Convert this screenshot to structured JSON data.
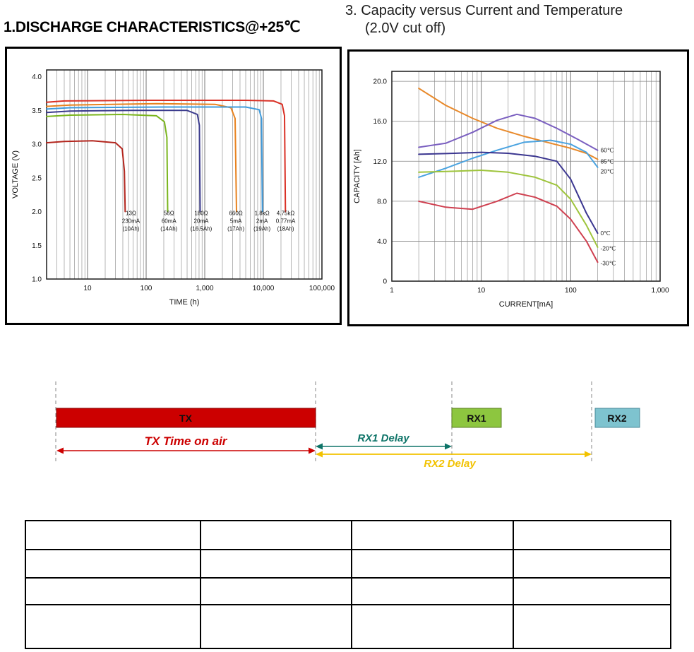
{
  "headings": {
    "left_chart_title": "1.DISCHARGE CHARACTERISTICS@+25℃",
    "right_chart_title_1": "3. Capacity versus Current and Temperature",
    "right_chart_title_2": "(2.0V cut off)"
  },
  "chart_data": [
    {
      "id": "discharge",
      "type": "line",
      "title": "1.DISCHARGE CHARACTERISTICS@+25℃",
      "xlabel": "TIME (h)",
      "ylabel": "VOLTAGE (V)",
      "xscale": "log",
      "xlim": [
        2,
        100000
      ],
      "ylim": [
        1.0,
        4.1
      ],
      "yticks": [
        1.0,
        1.5,
        2.0,
        2.5,
        3.0,
        3.5,
        4.0
      ],
      "ytick_labels": [
        "1.0",
        "1.5",
        "2.0",
        "2.5",
        "3.0",
        "3.5",
        "4.0"
      ],
      "xticks": [
        10,
        100,
        1000,
        10000,
        100000
      ],
      "xtick_labels": [
        "10",
        "100",
        "1,000",
        "10,000",
        "100,000"
      ],
      "hgrid": false,
      "legend": "none",
      "series": [
        {
          "name": "4.75kΩ 0.77mA (18Ah)",
          "color": "#d93025",
          "points": [
            [
              2,
              3.62
            ],
            [
              4,
              3.64
            ],
            [
              100,
              3.65
            ],
            [
              5000,
              3.65
            ],
            [
              15000,
              3.64
            ],
            [
              21000,
              3.59
            ],
            [
              23000,
              3.42
            ],
            [
              23800,
              2.0
            ]
          ]
        },
        {
          "name": "660Ω 5mA (17Ah)",
          "color": "#e8821e",
          "points": [
            [
              2,
              3.56
            ],
            [
              5,
              3.58
            ],
            [
              150,
              3.6
            ],
            [
              1500,
              3.59
            ],
            [
              2800,
              3.54
            ],
            [
              3300,
              3.38
            ],
            [
              3480,
              2.0
            ]
          ]
        },
        {
          "name": "1.8kΩ 2mA (19Ah)",
          "color": "#3f9bdc",
          "points": [
            [
              2,
              3.52
            ],
            [
              5,
              3.54
            ],
            [
              200,
              3.55
            ],
            [
              5000,
              3.55
            ],
            [
              8500,
              3.51
            ],
            [
              9300,
              3.38
            ],
            [
              9650,
              2.0
            ]
          ]
        },
        {
          "name": "180Ω 20mA (16.5Ah)",
          "color": "#3a3a8c",
          "points": [
            [
              2,
              3.47
            ],
            [
              5,
              3.49
            ],
            [
              60,
              3.5
            ],
            [
              500,
              3.5
            ],
            [
              750,
              3.44
            ],
            [
              810,
              3.28
            ],
            [
              835,
              2.0
            ]
          ]
        },
        {
          "name": "56Ω 60mA (14Ah)",
          "color": "#7ab51d",
          "points": [
            [
              2,
              3.41
            ],
            [
              5,
              3.43
            ],
            [
              40,
              3.44
            ],
            [
              150,
              3.42
            ],
            [
              205,
              3.33
            ],
            [
              226,
              3.1
            ],
            [
              233,
              2.0
            ]
          ]
        },
        {
          "name": "13Ω 230mA (10Ah)",
          "color": "#b3261e",
          "points": [
            [
              2,
              3.02
            ],
            [
              4,
              3.04
            ],
            [
              12,
              3.05
            ],
            [
              30,
              3.02
            ],
            [
              39,
              2.93
            ],
            [
              42.5,
              2.6
            ],
            [
              43.8,
              2.0
            ]
          ]
        }
      ],
      "annotations": [
        {
          "x": 55,
          "y": 1.95,
          "lines": [
            "13Ω",
            "230mA",
            "(10Ah)"
          ]
        },
        {
          "x": 245,
          "y": 1.95,
          "lines": [
            "56Ω",
            "60mA",
            "(14Ah)"
          ]
        },
        {
          "x": 870,
          "y": 1.95,
          "lines": [
            "180Ω",
            "20mA",
            "(16.5Ah)"
          ]
        },
        {
          "x": 3400,
          "y": 1.95,
          "lines": [
            "660Ω",
            "5mA",
            "(17Ah)"
          ]
        },
        {
          "x": 9500,
          "y": 1.95,
          "lines": [
            "1.8kΩ",
            "2mA",
            "(19Ah)"
          ]
        },
        {
          "x": 24000,
          "y": 1.95,
          "lines": [
            "4.75kΩ",
            "0.77mA",
            "(18Ah)"
          ]
        }
      ],
      "curve_labels": []
    },
    {
      "id": "capacity",
      "type": "line",
      "title": "3. Capacity versus Current and Temperature (2.0V cut off)",
      "xlabel": "CURRENT[mA]",
      "ylabel": "CAPACITY [Ah]",
      "xscale": "log",
      "xlim": [
        1,
        1000
      ],
      "ylim": [
        0,
        21
      ],
      "yticks": [
        0,
        4,
        8,
        12,
        16,
        20
      ],
      "ytick_labels": [
        "0",
        "4.0",
        "8.0",
        "12.0",
        "16.0",
        "20.0"
      ],
      "xticks": [
        1,
        10,
        100,
        1000
      ],
      "xtick_labels": [
        "1",
        "10",
        "100",
        "1,000"
      ],
      "hgrid": true,
      "legend": "inline-right",
      "series": [
        {
          "name": "85℃",
          "color": "#e8892a",
          "points": [
            [
              2,
              19.3
            ],
            [
              4,
              17.6
            ],
            [
              8,
              16.3
            ],
            [
              15,
              15.3
            ],
            [
              30,
              14.5
            ],
            [
              60,
              13.8
            ],
            [
              100,
              13.3
            ],
            [
              150,
              12.8
            ],
            [
              200,
              12.2
            ]
          ]
        },
        {
          "name": "60℃",
          "color": "#7a5fc0",
          "points": [
            [
              2,
              13.4
            ],
            [
              4,
              13.8
            ],
            [
              8,
              14.9
            ],
            [
              15,
              16.1
            ],
            [
              25,
              16.7
            ],
            [
              40,
              16.3
            ],
            [
              70,
              15.3
            ],
            [
              120,
              14.2
            ],
            [
              200,
              13.1
            ]
          ]
        },
        {
          "name": "20℃",
          "color": "#4aa3e0",
          "points": [
            [
              2,
              10.4
            ],
            [
              4,
              11.3
            ],
            [
              8,
              12.3
            ],
            [
              15,
              13.1
            ],
            [
              30,
              13.9
            ],
            [
              60,
              14.1
            ],
            [
              100,
              13.7
            ],
            [
              150,
              12.9
            ],
            [
              200,
              11.4
            ]
          ]
        },
        {
          "name": "0℃",
          "color": "#3b3690",
          "points": [
            [
              2,
              12.7
            ],
            [
              5,
              12.8
            ],
            [
              10,
              12.9
            ],
            [
              20,
              12.8
            ],
            [
              40,
              12.5
            ],
            [
              70,
              12.0
            ],
            [
              100,
              10.2
            ],
            [
              150,
              6.8
            ],
            [
              200,
              4.8
            ]
          ]
        },
        {
          "name": "-20℃",
          "color": "#9ec43c",
          "points": [
            [
              2,
              10.9
            ],
            [
              5,
              11.0
            ],
            [
              10,
              11.1
            ],
            [
              20,
              10.9
            ],
            [
              40,
              10.4
            ],
            [
              70,
              9.6
            ],
            [
              100,
              8.2
            ],
            [
              150,
              5.6
            ],
            [
              200,
              3.4
            ]
          ]
        },
        {
          "name": "-30℃",
          "color": "#cf4050",
          "points": [
            [
              2,
              8.0
            ],
            [
              4,
              7.4
            ],
            [
              8,
              7.2
            ],
            [
              15,
              8.0
            ],
            [
              25,
              8.8
            ],
            [
              40,
              8.4
            ],
            [
              70,
              7.5
            ],
            [
              100,
              6.2
            ],
            [
              150,
              4.0
            ],
            [
              200,
              1.9
            ]
          ]
        }
      ],
      "annotations": [],
      "curve_labels": [
        {
          "text": "60℃",
          "x": 215,
          "y": 13.1
        },
        {
          "text": "85℃",
          "x": 215,
          "y": 12.0
        },
        {
          "text": "20℃",
          "x": 215,
          "y": 11.0
        },
        {
          "text": "0℃",
          "x": 215,
          "y": 4.8
        },
        {
          "text": "-20℃",
          "x": 215,
          "y": 3.3
        },
        {
          "text": "-30℃",
          "x": 215,
          "y": 1.8
        }
      ]
    }
  ],
  "timing": {
    "tx_label": "TX",
    "rx1_label": "RX1",
    "rx2_label": "RX2",
    "tx_arrow_label": "TX Time on air",
    "rx1_arrow_label": "RX1 Delay",
    "rx2_arrow_label": "RX2 Delay",
    "colors": {
      "tx_bar": "#cc0000",
      "rx1_bar": "#8dc63f",
      "rx2_bar": "#7ec3cf",
      "tx_arrow": "#cc0000",
      "rx1_arrow": "#0e7468",
      "rx2_arrow": "#f2c200"
    }
  },
  "table": {
    "columns": 4,
    "rows": [
      [
        "",
        "",
        "",
        ""
      ],
      [
        "",
        "",
        "",
        ""
      ],
      [
        "",
        "",
        "",
        ""
      ],
      [
        "",
        "",
        "",
        ""
      ]
    ]
  }
}
